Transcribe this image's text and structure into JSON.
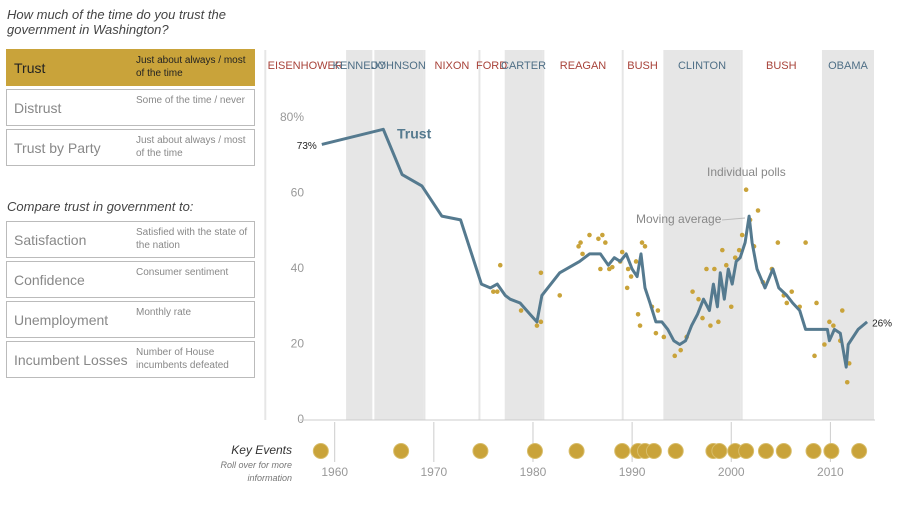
{
  "panel": {
    "question": "How much of the time do you trust the government in Washington?",
    "measures": [
      {
        "name": "Trust",
        "description": "Just about always / most of the time",
        "active": true
      },
      {
        "name": "Distrust",
        "description": "Some of the time / never"
      },
      {
        "name": "Trust by Party",
        "description": "Just about always / most of the time"
      }
    ],
    "compare_heading": "Compare trust in government to:",
    "comparisons": [
      {
        "name": "Satisfaction",
        "description": "Satisfied with the state of the nation"
      },
      {
        "name": "Confidence",
        "description": "Consumer sentiment"
      },
      {
        "name": "Unemployment",
        "description": "Monthly rate"
      },
      {
        "name": "Incumbent Losses",
        "description": "Number of House incumbents defeated"
      }
    ]
  },
  "chart_data": {
    "type": "line",
    "xlim": [
      1956.5,
      2014.5
    ],
    "xticks": [
      1960,
      1970,
      1980,
      1990,
      2000,
      2010
    ],
    "ylim": [
      0,
      80
    ],
    "yticks": [
      0,
      20,
      40,
      60,
      {
        "value": 80,
        "label": "80%"
      }
    ],
    "presidents": [
      {
        "name": "EISENHOWER",
        "start": 1953,
        "color": "#a8433a",
        "shade": false
      },
      {
        "name": "KENNEDY",
        "start": 1961.05,
        "color": "#4f6f86",
        "shade": true
      },
      {
        "name": "JOHNSON",
        "start": 1963.9,
        "color": "#4f6f86",
        "shade": true
      },
      {
        "name": "NIXON",
        "start": 1969.05,
        "color": "#a8433a",
        "shade": false
      },
      {
        "name": "FORD",
        "start": 1974.6,
        "color": "#a8433a",
        "shade": false
      },
      {
        "name": "CARTER",
        "start": 1977.05,
        "color": "#4f6f86",
        "shade": true
      },
      {
        "name": "REAGAN",
        "start": 1981.05,
        "color": "#a8433a",
        "shade": false
      },
      {
        "name": "BUSH",
        "start": 1989.05,
        "color": "#a8433a",
        "shade": false
      },
      {
        "name": "CLINTON",
        "start": 1993.05,
        "color": "#4f6f86",
        "shade": true
      },
      {
        "name": "BUSH",
        "start": 2001.05,
        "color": "#a8433a",
        "shade": false
      },
      {
        "name": "OBAMA",
        "start": 2009.05,
        "color": "#4f6f86",
        "shade": true
      }
    ],
    "series": [
      {
        "name": "Trust",
        "type": "line",
        "color": "#557a8f",
        "x": [
          1958.7,
          1964.9,
          1966.8,
          1968.8,
          1970.8,
          1972.7,
          1974.8,
          1975.7,
          1976.4,
          1977.2,
          1977.7,
          1978.7,
          1979.7,
          1980.4,
          1980.9,
          1982.7,
          1984.7,
          1985.7,
          1986.8,
          1987.6,
          1988.2,
          1988.8,
          1989.4,
          1990,
          1990.5,
          1990.9,
          1991.3,
          1991.8,
          1992.4,
          1993,
          1993.6,
          1994.2,
          1994.8,
          1995.4,
          1996,
          1996.6,
          1997.2,
          1997.8,
          1998.2,
          1998.6,
          1998.9,
          1999.3,
          1999.7,
          2000.1,
          2000.5,
          2000.9,
          2001.4,
          2001.8,
          2002.1,
          2002.6,
          2003.4,
          2004.2,
          2004.8,
          2005.6,
          2006.2,
          2006.9,
          2007.5,
          2008.7,
          2009.7,
          2009.9,
          2010.4,
          2011,
          2011.6,
          2011.8,
          2012.8,
          2013.7
        ],
        "values": [
          73,
          77,
          65,
          62,
          54,
          53,
          36,
          35,
          36,
          33,
          32,
          31,
          28,
          26,
          33,
          39,
          42,
          44,
          44,
          41,
          43,
          42,
          44,
          40,
          38,
          44,
          35,
          31,
          26,
          26,
          24,
          21,
          20,
          21,
          25,
          28,
          32,
          29,
          36,
          30,
          39,
          32,
          40,
          36,
          42,
          43,
          47,
          54,
          47,
          40,
          35,
          40,
          35,
          33,
          31,
          29,
          24,
          24,
          24,
          21,
          24,
          23,
          14,
          20,
          24,
          26
        ],
        "value_labels": [
          "73%",
          null,
          null,
          null,
          null,
          null,
          null,
          null,
          null,
          null,
          null,
          null,
          null,
          null,
          null,
          null,
          null,
          null,
          null,
          null,
          null,
          null,
          null,
          null,
          null,
          null,
          null,
          null,
          null,
          null,
          null,
          null,
          null,
          null,
          null,
          null,
          null,
          null,
          null,
          null,
          null,
          null,
          null,
          null,
          null,
          null,
          null,
          null,
          null,
          null,
          null,
          null,
          null,
          null,
          null,
          null,
          null,
          null,
          null,
          null,
          null,
          null,
          null,
          null,
          null,
          "26%"
        ]
      },
      {
        "type": "scatter",
        "color": "#c9a33a",
        "x": [
          1976,
          1976.4,
          1976.7,
          1978.8,
          1980.4,
          1980.8,
          1980.8,
          1982.7,
          1984.6,
          1984.8,
          1985,
          1985.7,
          1986.6,
          1987,
          1987.3,
          1986.8,
          1987.7,
          1988,
          1988.8,
          1989,
          1989.6,
          1989.9,
          1989.5,
          1990.4,
          1991,
          1991.3,
          1990.6,
          1990.8,
          1992,
          1992.6,
          1992.4,
          1993.2,
          1994.3,
          1994.9,
          1995.5,
          1996.1,
          1996.7,
          1997.1,
          1997.5,
          1997.9,
          1998.3,
          1998.7,
          1998.9,
          1999.1,
          1999.5,
          2000,
          2000.4,
          2000.8,
          2001.1,
          2001.5,
          2001.9,
          2002.3,
          2002.7,
          2003.2,
          2004.1,
          2004.7,
          2005.3,
          2005.6,
          2006.1,
          2006.9,
          2007.5,
          2008.4,
          2008.6,
          2009.4,
          2009.9,
          2010.3,
          2011,
          2011.2,
          2011.7,
          2011.9
        ],
        "values": [
          34,
          34,
          41,
          29,
          25,
          26,
          39,
          33,
          46,
          47,
          44,
          49,
          48,
          49,
          47,
          40,
          40,
          40.5,
          42,
          44.5,
          40,
          38,
          35,
          42,
          47,
          46,
          28,
          25,
          30,
          29,
          23,
          22,
          17,
          18.5,
          22,
          34,
          32,
          27,
          40,
          25,
          40,
          26,
          36,
          45,
          41,
          30,
          43,
          45,
          49,
          61,
          53,
          46,
          55.5,
          36.5,
          40,
          47,
          33,
          31,
          34,
          30,
          47,
          17,
          31,
          20,
          26,
          25,
          21,
          29,
          10,
          15
        ]
      }
    ],
    "annotations": [
      "Trust",
      "Individual polls",
      "Moving average"
    ],
    "key_events_title": "Key Events",
    "key_events_note": "Roll over for more information",
    "key_events": [
      1958.6,
      1966.7,
      1974.7,
      1980.2,
      1984.4,
      1989,
      1990.6,
      1991.3,
      1992.2,
      1994.4,
      1998.2,
      1998.8,
      2000.4,
      2001.5,
      2003.5,
      2005.3,
      2008.3,
      2010.1,
      2012.9
    ],
    "key_event_color": "#c9a33a"
  }
}
